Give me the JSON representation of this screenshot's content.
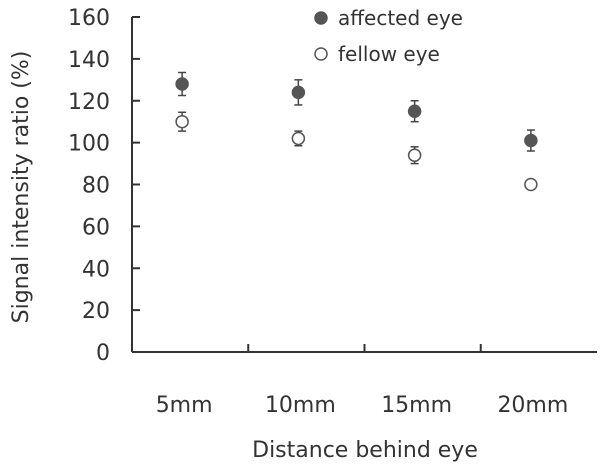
{
  "chart_data": {
    "type": "scatter",
    "xlabel": "Distance behind eye",
    "ylabel": "Signal intensity ratio (%)",
    "categories": [
      "5mm",
      "10mm",
      "15mm",
      "20mm"
    ],
    "ylim": [
      0,
      160
    ],
    "yticks": [
      0,
      20,
      40,
      60,
      80,
      100,
      120,
      140,
      160
    ],
    "grid": false,
    "legend_position": "top-right",
    "series": [
      {
        "name": "affected eye",
        "marker": "filled-circle",
        "color": "#555555",
        "values": [
          128,
          124,
          115,
          101
        ],
        "error": [
          5.5,
          6,
          5,
          5
        ]
      },
      {
        "name": "fellow eye",
        "marker": "open-circle",
        "color": "#555555",
        "values": [
          110,
          102,
          94,
          80
        ],
        "error": [
          4.5,
          3.5,
          4,
          2
        ]
      }
    ]
  }
}
